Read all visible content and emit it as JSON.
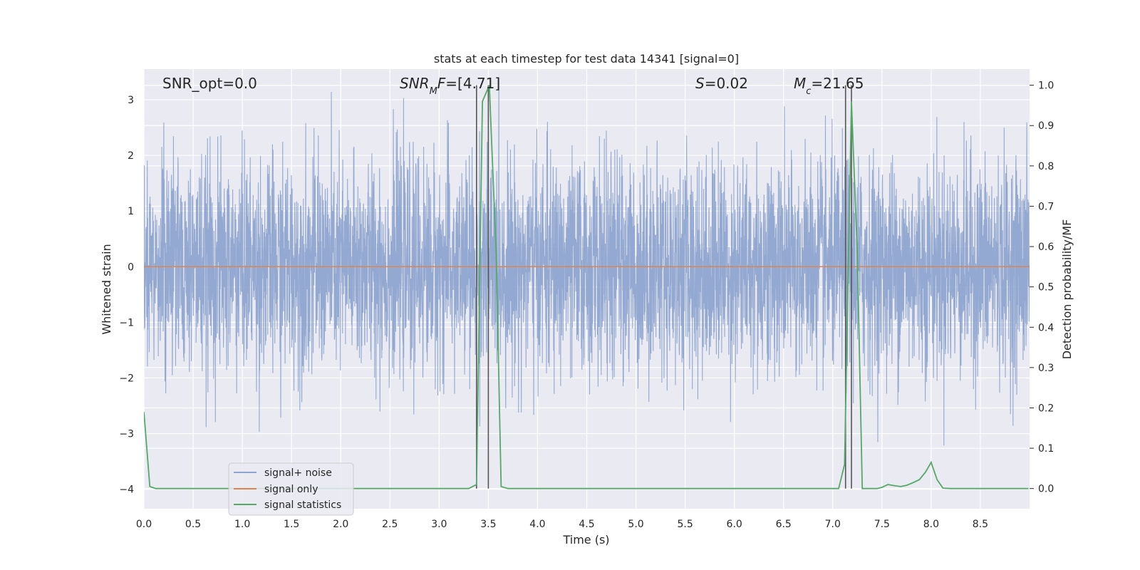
{
  "chart_data": {
    "type": "line",
    "title": "stats at each timestep for test data 14341 [signal=0]",
    "xlabel": "Time (s)",
    "ylabel": "Whitened strain",
    "ylabel_right": "Detection probability/MF",
    "xlim": [
      0.0,
      9.0
    ],
    "ylim": [
      -4.35,
      3.55
    ],
    "ylim_right": [
      -0.05,
      1.04
    ],
    "grid": true,
    "x_ticks": [
      "0.0",
      "0.5",
      "1.0",
      "1.5",
      "2.0",
      "2.5",
      "3.0",
      "3.5",
      "4.0",
      "4.5",
      "5.0",
      "5.5",
      "6.0",
      "6.5",
      "7.0",
      "7.5",
      "8.0",
      "8.5"
    ],
    "y_ticks": [
      "-4",
      "-3",
      "-2",
      "-1",
      "0",
      "1",
      "2",
      "3"
    ],
    "y_ticks_right": [
      "0.0",
      "0.1",
      "0.2",
      "0.3",
      "0.4",
      "0.5",
      "0.6",
      "0.7",
      "0.8",
      "0.9",
      "1.0"
    ],
    "annotations": [
      {
        "name": "snr-opt",
        "text": "SNR_opt=0.0"
      },
      {
        "name": "snr-mf",
        "text": "SNR_MF=[4.71]"
      },
      {
        "name": "s-stat",
        "text": "S=0.02"
      },
      {
        "name": "chirp-mass",
        "text": "M_c=21.65"
      }
    ],
    "series": [
      {
        "name": "signal+ noise",
        "color": "#8fa5cf",
        "axis": "left",
        "style": "noise, amplitude ~N(0,1), range approx -3.4 to 3.4"
      },
      {
        "name": "signal only",
        "color": "#dd8452",
        "axis": "left",
        "x": [
          0.0,
          9.0
        ],
        "y": [
          0.0,
          0.0
        ]
      },
      {
        "name": "signal statistics",
        "color": "#55a868",
        "axis": "right",
        "x": [
          0.0,
          0.06,
          0.12,
          0.2,
          0.5,
          1.0,
          1.5,
          2.0,
          2.5,
          3.0,
          3.3,
          3.38,
          3.44,
          3.51,
          3.58,
          3.63,
          3.7,
          4.0,
          5.0,
          6.0,
          7.0,
          7.06,
          7.12,
          7.19,
          7.25,
          7.3,
          7.38,
          7.45,
          7.5,
          7.56,
          7.63,
          7.69,
          7.75,
          7.81,
          7.88,
          7.94,
          8.0,
          8.06,
          8.12,
          8.2,
          8.5,
          8.99
        ],
        "y": [
          0.19,
          0.005,
          0.0,
          0.0,
          0.0,
          0.0,
          0.0,
          0.0,
          0.0,
          0.0,
          0.0,
          0.01,
          0.96,
          1.0,
          0.58,
          0.005,
          0.0,
          0.0,
          0.0,
          0.0,
          0.0,
          0.0,
          0.06,
          0.96,
          0.58,
          0.0,
          0.0,
          0.0,
          0.003,
          0.01,
          0.007,
          0.005,
          0.008,
          0.014,
          0.022,
          0.04,
          0.065,
          0.022,
          0.001,
          0.0,
          0.0,
          0.0
        ]
      }
    ],
    "vertical_lines": [
      {
        "x": 3.38,
        "color": "#555555"
      },
      {
        "x": 3.5,
        "color": "#555555"
      },
      {
        "x": 7.13,
        "color": "#555555"
      },
      {
        "x": 7.19,
        "color": "#555555"
      }
    ],
    "legend": {
      "position": "lower-left",
      "entries": [
        "signal+ noise",
        "signal only",
        "signal statistics"
      ]
    }
  }
}
